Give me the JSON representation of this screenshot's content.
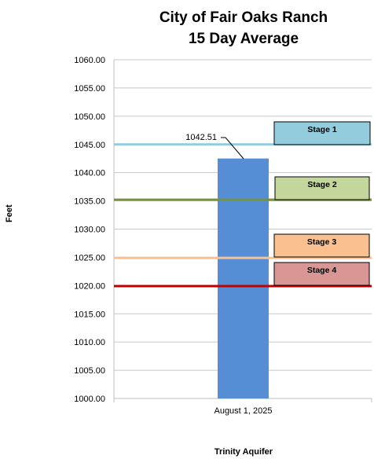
{
  "chart_data": {
    "type": "bar",
    "title_lines": [
      "City of Fair Oaks Ranch",
      "15 Day Average"
    ],
    "xlabel": "Trinity Aquifer",
    "ylabel": "Feet",
    "categories": [
      "August 1, 2025"
    ],
    "values": [
      1042.51
    ],
    "value_label": "1042.51",
    "ylim": [
      1000,
      1060
    ],
    "ytick_step": 5,
    "ytick_labels": [
      "1000.00",
      "1005.00",
      "1010.00",
      "1015.00",
      "1020.00",
      "1025.00",
      "1030.00",
      "1035.00",
      "1040.00",
      "1045.00",
      "1050.00",
      "1055.00",
      "1060.00"
    ],
    "grid": true,
    "bar_color": "#558ED5",
    "stages": [
      {
        "label": "Stage 1",
        "value": 1045,
        "line_color": "#93CDDD",
        "box_color": "#93CDDD"
      },
      {
        "label": "Stage 2",
        "value": 1035.2,
        "line_color": "#77933C",
        "box_color": "#C3D69B"
      },
      {
        "label": "Stage 3",
        "value": 1024.9,
        "line_color": "#FAC090",
        "box_color": "#FAC090"
      },
      {
        "label": "Stage 4",
        "value": 1019.9,
        "line_color": "#C00000",
        "box_color": "#D99694"
      }
    ]
  }
}
